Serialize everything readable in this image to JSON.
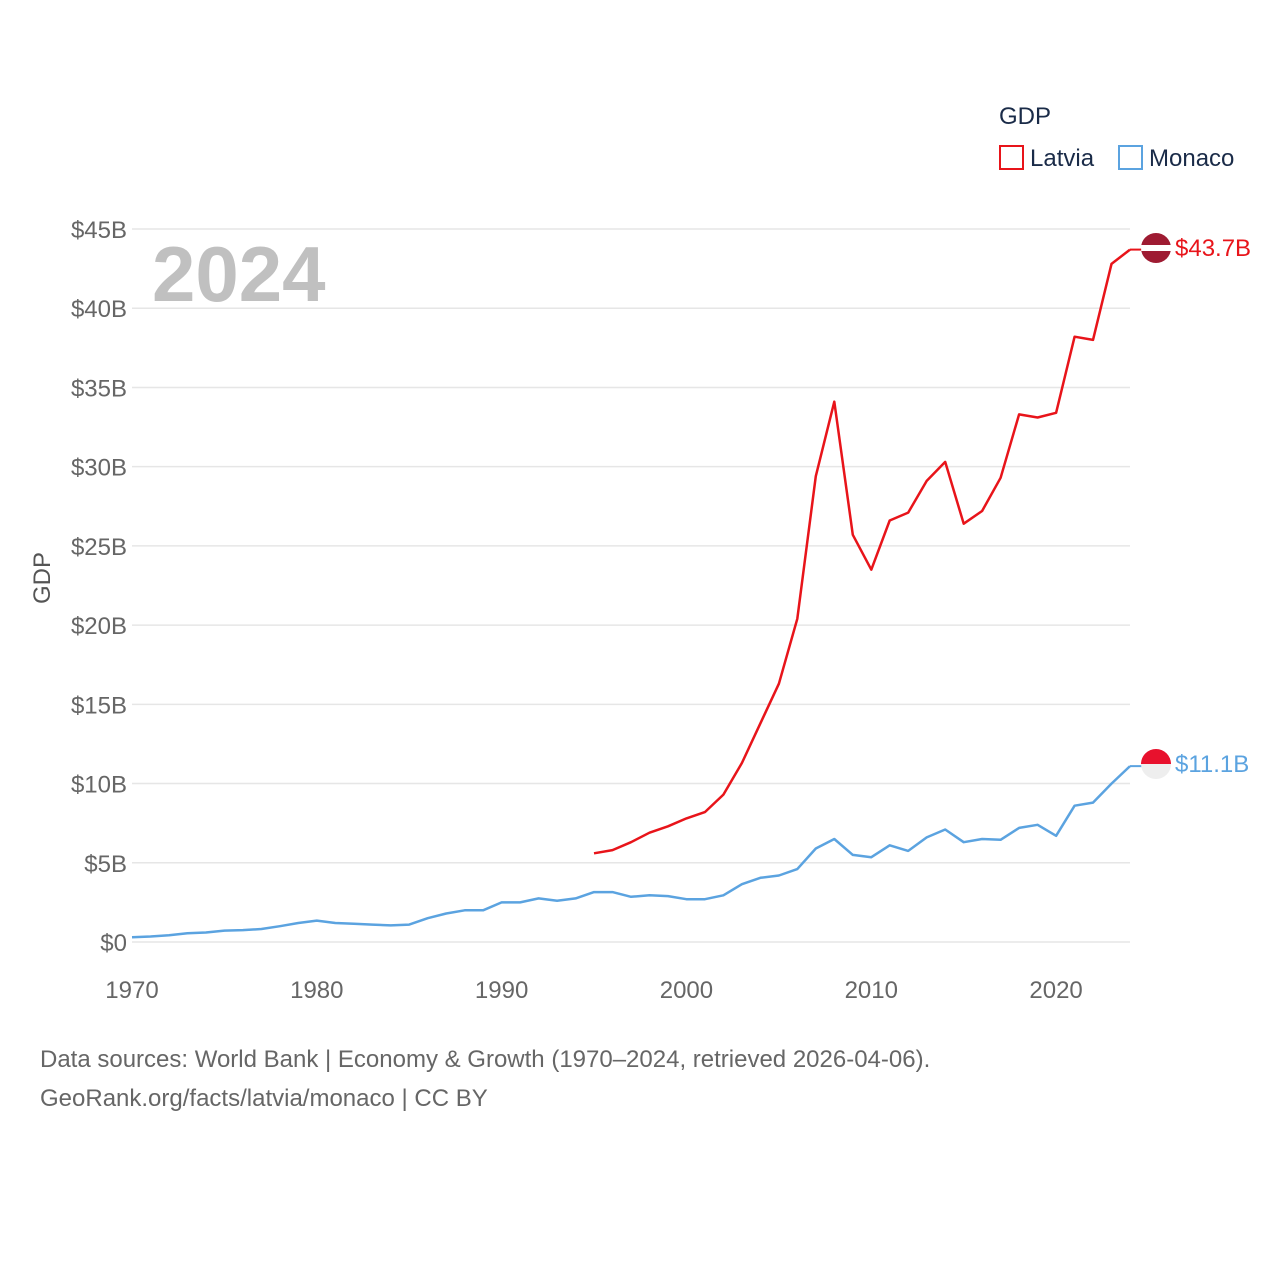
{
  "chart_data": {
    "type": "line",
    "ylabel": "GDP",
    "legend_title": "GDP",
    "legend_position": "top-right",
    "year_display": "2024",
    "xlim": [
      1970,
      2024
    ],
    "ylim": [
      0,
      45
    ],
    "x_ticks": [
      1970,
      1980,
      1990,
      2000,
      2010,
      2020
    ],
    "x_tick_labels": [
      "1970",
      "1980",
      "1990",
      "2000",
      "2010",
      "2020"
    ],
    "y_ticks": [
      0,
      5,
      10,
      15,
      20,
      25,
      30,
      35,
      40,
      45
    ],
    "y_tick_labels": [
      "$0",
      "$5B",
      "$10B",
      "$15B",
      "$20B",
      "$25B",
      "$30B",
      "$35B",
      "$40B",
      "$45B"
    ],
    "grid": true,
    "series": [
      {
        "name": "Latvia",
        "color": "#e8141a",
        "end_label": "$43.7B",
        "flag_colors": [
          "#9e1b32",
          "#ffffff"
        ],
        "x": [
          1995,
          1996,
          1997,
          1998,
          1999,
          2000,
          2001,
          2002,
          2003,
          2004,
          2005,
          2006,
          2007,
          2008,
          2009,
          2010,
          2011,
          2012,
          2013,
          2014,
          2015,
          2016,
          2017,
          2018,
          2019,
          2020,
          2021,
          2022,
          2023,
          2024
        ],
        "values": [
          5.6,
          5.8,
          6.3,
          6.9,
          7.3,
          7.8,
          8.2,
          9.3,
          11.3,
          13.8,
          16.3,
          20.4,
          29.4,
          34.1,
          25.7,
          23.5,
          26.6,
          27.1,
          29.1,
          30.3,
          26.4,
          27.2,
          29.3,
          33.3,
          33.1,
          33.4,
          38.2,
          38.0,
          42.8,
          43.7
        ]
      },
      {
        "name": "Monaco",
        "color": "#5ba3e0",
        "end_label": "$11.1B",
        "flag_colors": [
          "#e8112d",
          "#eeeeee"
        ],
        "x": [
          1970,
          1971,
          1972,
          1973,
          1974,
          1975,
          1976,
          1977,
          1978,
          1979,
          1980,
          1981,
          1982,
          1983,
          1984,
          1985,
          1986,
          1987,
          1988,
          1989,
          1990,
          1991,
          1992,
          1993,
          1994,
          1995,
          1996,
          1997,
          1998,
          1999,
          2000,
          2001,
          2002,
          2003,
          2004,
          2005,
          2006,
          2007,
          2008,
          2009,
          2010,
          2011,
          2012,
          2013,
          2014,
          2015,
          2016,
          2017,
          2018,
          2019,
          2020,
          2021,
          2022,
          2023,
          2024
        ],
        "values": [
          0.3,
          0.35,
          0.42,
          0.55,
          0.6,
          0.72,
          0.75,
          0.82,
          1.0,
          1.2,
          1.35,
          1.2,
          1.15,
          1.1,
          1.05,
          1.1,
          1.5,
          1.8,
          2.0,
          2.0,
          2.5,
          2.5,
          2.75,
          2.6,
          2.75,
          3.15,
          3.15,
          2.85,
          2.95,
          2.9,
          2.7,
          2.7,
          2.95,
          3.65,
          4.05,
          4.2,
          4.6,
          5.9,
          6.5,
          5.5,
          5.35,
          6.1,
          5.75,
          6.6,
          7.1,
          6.3,
          6.5,
          6.45,
          7.2,
          7.4,
          6.7,
          8.6,
          8.8,
          10.0,
          11.1
        ]
      }
    ]
  },
  "source": {
    "line1": "Data sources: World Bank | Economy & Growth (1970–2024, retrieved 2026-04-06).",
    "line2": "GeoRank.org/facts/latvia/monaco | CC BY"
  }
}
